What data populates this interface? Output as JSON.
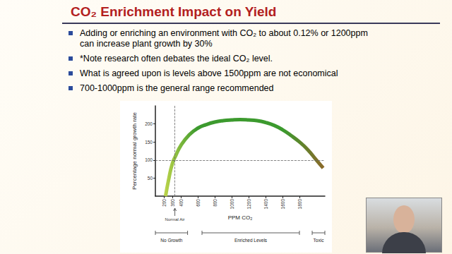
{
  "slide": {
    "title": "CO₂ Enrichment Impact on Yield",
    "bullets": [
      "Adding or enriching an environment with CO₂ to about 0.12% or 1200ppm can increase plant growth by 30%",
      "*Note research often debates the ideal CO₂ level.",
      "What is agreed upon is levels above 1500ppm are not economical",
      "700-1000ppm is the general range recommended"
    ]
  },
  "chart_data": {
    "type": "line",
    "xlabel": "PPM CO₂",
    "ylabel": "Percentage normal growth rate",
    "x": [
      220,
      260,
      300,
      340,
      400,
      500,
      600,
      700,
      800,
      900,
      1000,
      1100,
      1200,
      1300,
      1400,
      1500,
      1600,
      1700,
      1800,
      1900,
      2000,
      2080
    ],
    "values": [
      0,
      50,
      90,
      112,
      140,
      170,
      188,
      198,
      205,
      209,
      211,
      212,
      211,
      209,
      204,
      196,
      184,
      168,
      150,
      128,
      100,
      78
    ],
    "color": "#3c9a2e",
    "xlim": [
      100,
      2100
    ],
    "ylim": [
      0,
      250
    ],
    "xticks": [
      200,
      300,
      400,
      600,
      800,
      1000,
      1200,
      1400,
      1600,
      1800
    ],
    "yticks": [
      50,
      100,
      150,
      200
    ],
    "grid": false,
    "reference_lines": {
      "x": 330,
      "y": 100
    },
    "annotations": [
      {
        "text": "Normal Air",
        "x": 330
      }
    ],
    "regions": [
      {
        "label": "No Growth",
        "from": 100,
        "to": 480
      },
      {
        "label": "Enriched Levels",
        "from": 650,
        "to": 1800
      },
      {
        "label": "Toxic",
        "from": 1950,
        "to": 2100
      }
    ]
  }
}
